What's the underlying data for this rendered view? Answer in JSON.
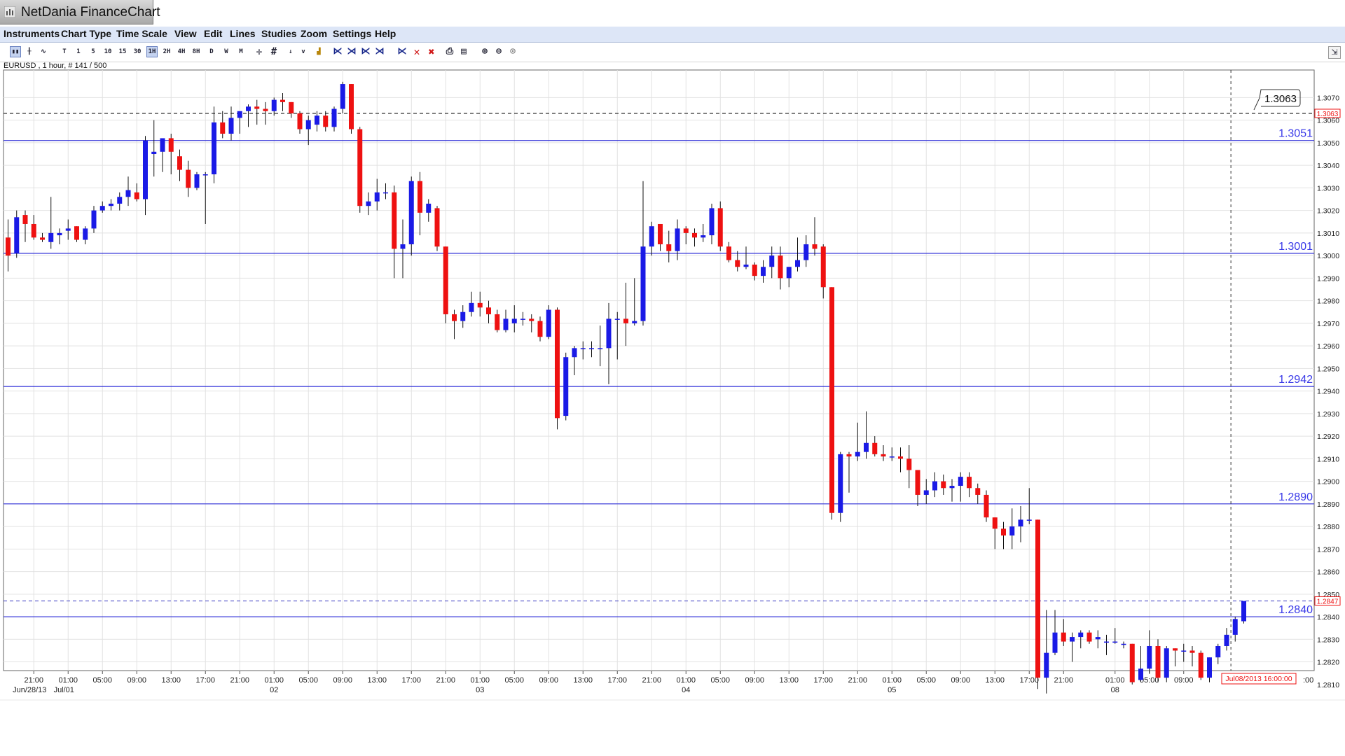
{
  "app": {
    "title": "NetDania FinanceChart"
  },
  "menu": [
    "Instruments",
    "Chart Type",
    "Time Scale",
    "View",
    "Edit",
    "Lines",
    "Studies",
    "Zoom",
    "Settings",
    "Help"
  ],
  "toolbar": {
    "timeframes": [
      "T",
      "1",
      "5",
      "10",
      "15",
      "30",
      "1H",
      "2H",
      "4H",
      "8H",
      "D",
      "W",
      "M"
    ],
    "active_timeframe": "1H"
  },
  "instrument_label": "EURUSD , 1 hour, # 141 / 500",
  "current_price_label": "1.2847",
  "high_marker_label": "1.3063",
  "cursor_date_label": "Jul08/2013 16:00:00",
  "colors": {
    "up": "#1a1ae6",
    "down": "#ee1111",
    "level_line": "#3030d8",
    "level_text": "#3a3ae8",
    "dashed": "#333333",
    "current_price": "#ee1111",
    "grid": "#e2e2e2"
  },
  "chart_data": {
    "type": "candlestick",
    "symbol": "EURUSD",
    "interval": "1 hour",
    "ylim": [
      1.2805,
      1.3075
    ],
    "y_ticks": [
      "1.2810",
      "1.2820",
      "1.2830",
      "1.2840",
      "1.2850",
      "1.2860",
      "1.2870",
      "1.2880",
      "1.2890",
      "1.2900",
      "1.2910",
      "1.2920",
      "1.2930",
      "1.2940",
      "1.2950",
      "1.2960",
      "1.2970",
      "1.2980",
      "1.2990",
      "1.3000",
      "1.3010",
      "1.3020",
      "1.3030",
      "1.3040",
      "1.3050",
      "1.3060",
      "1.3070"
    ],
    "x_ticks": [
      {
        "bar": 3,
        "label": "21:00",
        "date": "Jun/28/13"
      },
      {
        "bar": 7,
        "label": "01:00",
        "date": "Jul/01"
      },
      {
        "bar": 11,
        "label": "05:00",
        "date": ""
      },
      {
        "bar": 15,
        "label": "09:00",
        "date": ""
      },
      {
        "bar": 19,
        "label": "13:00",
        "date": ""
      },
      {
        "bar": 23,
        "label": "17:00",
        "date": ""
      },
      {
        "bar": 27,
        "label": "21:00",
        "date": ""
      },
      {
        "bar": 31,
        "label": "01:00",
        "date": "02"
      },
      {
        "bar": 35,
        "label": "05:00",
        "date": ""
      },
      {
        "bar": 39,
        "label": "09:00",
        "date": ""
      },
      {
        "bar": 43,
        "label": "13:00",
        "date": ""
      },
      {
        "bar": 47,
        "label": "17:00",
        "date": ""
      },
      {
        "bar": 51,
        "label": "21:00",
        "date": ""
      },
      {
        "bar": 55,
        "label": "01:00",
        "date": "03"
      },
      {
        "bar": 59,
        "label": "05:00",
        "date": ""
      },
      {
        "bar": 63,
        "label": "09:00",
        "date": ""
      },
      {
        "bar": 67,
        "label": "13:00",
        "date": ""
      },
      {
        "bar": 71,
        "label": "17:00",
        "date": ""
      },
      {
        "bar": 75,
        "label": "21:00",
        "date": ""
      },
      {
        "bar": 79,
        "label": "01:00",
        "date": "04"
      },
      {
        "bar": 83,
        "label": "05:00",
        "date": ""
      },
      {
        "bar": 87,
        "label": "09:00",
        "date": ""
      },
      {
        "bar": 91,
        "label": "13:00",
        "date": ""
      },
      {
        "bar": 95,
        "label": "17:00",
        "date": ""
      },
      {
        "bar": 99,
        "label": "21:00",
        "date": ""
      },
      {
        "bar": 103,
        "label": "01:00",
        "date": "05"
      },
      {
        "bar": 107,
        "label": "05:00",
        "date": ""
      },
      {
        "bar": 111,
        "label": "09:00",
        "date": ""
      },
      {
        "bar": 115,
        "label": "13:00",
        "date": ""
      },
      {
        "bar": 119,
        "label": "17:00",
        "date": ""
      },
      {
        "bar": 123,
        "label": "21:00",
        "date": ""
      },
      {
        "bar": 129,
        "label": "01:00",
        "date": "08"
      },
      {
        "bar": 133,
        "label": "05:00",
        "date": ""
      },
      {
        "bar": 137,
        "label": "09:00",
        "date": ""
      }
    ],
    "levels": [
      {
        "value": 1.3051,
        "label": "1.3051"
      },
      {
        "value": 1.3001,
        "label": "1.3001"
      },
      {
        "value": 1.2942,
        "label": "1.2942"
      },
      {
        "value": 1.289,
        "label": "1.2890"
      },
      {
        "value": 1.284,
        "label": "1.2840"
      }
    ],
    "dashed_high": 1.3063,
    "current_price": 1.2847,
    "cursor_bar": 142.5,
    "last_axis_tick": ":00",
    "candles": [
      [
        1.3008,
        1.3016,
        1.2993,
        1.3
      ],
      [
        1.3001,
        1.302,
        1.2999,
        1.3017
      ],
      [
        1.3018,
        1.302,
        1.3006,
        1.3014
      ],
      [
        1.3014,
        1.3018,
        1.3007,
        1.3008
      ],
      [
        1.3008,
        1.301,
        1.3006,
        1.3007
      ],
      [
        1.3006,
        1.3026,
        1.3003,
        1.301
      ],
      [
        1.3009,
        1.3012,
        1.3005,
        1.301
      ],
      [
        1.3011,
        1.3016,
        1.3007,
        1.3012
      ],
      [
        1.3013,
        1.3013,
        1.3006,
        1.3007
      ],
      [
        1.3007,
        1.3013,
        1.3005,
        1.3012
      ],
      [
        1.3012,
        1.3022,
        1.301,
        1.302
      ],
      [
        1.302,
        1.3024,
        1.3019,
        1.3022
      ],
      [
        1.3022,
        1.3025,
        1.302,
        1.3023
      ],
      [
        1.3023,
        1.3028,
        1.302,
        1.3026
      ],
      [
        1.3026,
        1.3035,
        1.3022,
        1.3029
      ],
      [
        1.3028,
        1.3032,
        1.3024,
        1.3025
      ],
      [
        1.3025,
        1.3053,
        1.3018,
        1.3051
      ],
      [
        1.3045,
        1.306,
        1.3035,
        1.3046
      ],
      [
        1.3046,
        1.305,
        1.3037,
        1.3052
      ],
      [
        1.3052,
        1.3054,
        1.3036,
        1.3046
      ],
      [
        1.3044,
        1.3047,
        1.3033,
        1.3038
      ],
      [
        1.3038,
        1.3042,
        1.3026,
        1.303
      ],
      [
        1.303,
        1.3037,
        1.3029,
        1.3036
      ],
      [
        1.3036,
        1.3037,
        1.3014,
        1.3036
      ],
      [
        1.3036,
        1.3066,
        1.3032,
        1.3059
      ],
      [
        1.3059,
        1.3064,
        1.3052,
        1.3054
      ],
      [
        1.3054,
        1.3066,
        1.3051,
        1.3061
      ],
      [
        1.3061,
        1.3063,
        1.3054,
        1.3064
      ],
      [
        1.3064,
        1.3067,
        1.3057,
        1.3066
      ],
      [
        1.3066,
        1.3069,
        1.3058,
        1.3065
      ],
      [
        1.3065,
        1.3068,
        1.3058,
        1.3064
      ],
      [
        1.3064,
        1.307,
        1.3062,
        1.3069
      ],
      [
        1.3069,
        1.3072,
        1.3064,
        1.3068
      ],
      [
        1.3068,
        1.3068,
        1.3061,
        1.3063
      ],
      [
        1.3063,
        1.3064,
        1.3054,
        1.3056
      ],
      [
        1.3056,
        1.3062,
        1.3049,
        1.306
      ],
      [
        1.3058,
        1.3064,
        1.3055,
        1.3062
      ],
      [
        1.3062,
        1.3064,
        1.3055,
        1.3057
      ],
      [
        1.3057,
        1.3066,
        1.3055,
        1.3065
      ],
      [
        1.3065,
        1.3077,
        1.3063,
        1.3076
      ],
      [
        1.3076,
        1.3076,
        1.3054,
        1.3056
      ],
      [
        1.3056,
        1.3057,
        1.3019,
        1.3022
      ],
      [
        1.3022,
        1.3028,
        1.3018,
        1.3024
      ],
      [
        1.3024,
        1.3034,
        1.302,
        1.3028
      ],
      [
        1.3028,
        1.3032,
        1.3025,
        1.3028
      ],
      [
        1.3028,
        1.3031,
        1.299,
        1.3003
      ],
      [
        1.3003,
        1.3016,
        1.299,
        1.3005
      ],
      [
        1.3005,
        1.3035,
        1.3,
        1.3033
      ],
      [
        1.3033,
        1.3037,
        1.3009,
        1.3019
      ],
      [
        1.3019,
        1.3025,
        1.3015,
        1.3023
      ],
      [
        1.3021,
        1.3022,
        1.3002,
        1.3004
      ],
      [
        1.3004,
        1.3004,
        1.297,
        1.2974
      ],
      [
        1.2974,
        1.2976,
        1.2963,
        1.2971
      ],
      [
        1.2971,
        1.2978,
        1.2968,
        1.2975
      ],
      [
        1.2975,
        1.2984,
        1.2973,
        1.2979
      ],
      [
        1.2979,
        1.2984,
        1.2973,
        1.2977
      ],
      [
        1.2977,
        1.298,
        1.297,
        1.2974
      ],
      [
        1.2974,
        1.2976,
        1.2966,
        1.2967
      ],
      [
        1.2967,
        1.2976,
        1.2966,
        1.2972
      ],
      [
        1.297,
        1.2978,
        1.2966,
        1.2972
      ],
      [
        1.2972,
        1.2975,
        1.2969,
        1.2972
      ],
      [
        1.2972,
        1.2974,
        1.2966,
        1.2971
      ],
      [
        1.2971,
        1.2973,
        1.2962,
        1.2964
      ],
      [
        1.2964,
        1.2978,
        1.2963,
        1.2976
      ],
      [
        1.2976,
        1.2977,
        1.2923,
        1.2928
      ],
      [
        1.2929,
        1.2957,
        1.2927,
        1.2955
      ],
      [
        1.2955,
        1.296,
        1.2947,
        1.2959
      ],
      [
        1.2959,
        1.2962,
        1.2954,
        1.2959
      ],
      [
        1.2959,
        1.2962,
        1.2955,
        1.2959
      ],
      [
        1.2959,
        1.2969,
        1.2951,
        1.2959
      ],
      [
        1.2959,
        1.2979,
        1.2943,
        1.2972
      ],
      [
        1.2972,
        1.2975,
        1.2954,
        1.2972
      ],
      [
        1.2972,
        1.2988,
        1.296,
        1.297
      ],
      [
        1.297,
        1.299,
        1.2969,
        1.2971
      ],
      [
        1.2971,
        1.3033,
        1.2969,
        1.3004
      ],
      [
        1.3004,
        1.3015,
        1.3,
        1.3013
      ],
      [
        1.3014,
        1.3014,
        1.3002,
        1.3005
      ],
      [
        1.3005,
        1.3011,
        1.2997,
        1.3002
      ],
      [
        1.3002,
        1.3016,
        1.2998,
        1.3012
      ],
      [
        1.3012,
        1.3013,
        1.3005,
        1.301
      ],
      [
        1.301,
        1.3012,
        1.3004,
        1.3008
      ],
      [
        1.3008,
        1.3014,
        1.3006,
        1.3009
      ],
      [
        1.3009,
        1.3023,
        1.3005,
        1.3021
      ],
      [
        1.3021,
        1.3024,
        1.3002,
        1.3004
      ],
      [
        1.3004,
        1.3006,
        1.2997,
        1.2998
      ],
      [
        1.2998,
        1.3002,
        1.2993,
        1.2995
      ],
      [
        1.2995,
        1.3004,
        1.2994,
        1.2996
      ],
      [
        1.2996,
        1.2997,
        1.2989,
        1.2991
      ],
      [
        1.2991,
        1.2998,
        1.2988,
        1.2995
      ],
      [
        1.2995,
        1.3004,
        1.299,
        1.3
      ],
      [
        1.3,
        1.3004,
        1.2985,
        1.299
      ],
      [
        1.299,
        1.2995,
        1.2986,
        1.2995
      ],
      [
        1.2995,
        1.3008,
        1.2993,
        1.2998
      ],
      [
        1.2998,
        1.3009,
        1.2995,
        1.3005
      ],
      [
        1.3005,
        1.3017,
        1.3,
        1.3003
      ],
      [
        1.3004,
        1.3005,
        1.2981,
        1.2986
      ],
      [
        1.2986,
        1.2986,
        1.2883,
        1.2886
      ],
      [
        1.2886,
        1.2913,
        1.2882,
        1.2912
      ],
      [
        1.2912,
        1.2913,
        1.2895,
        1.2911
      ],
      [
        1.2911,
        1.2926,
        1.2909,
        1.2913
      ],
      [
        1.2913,
        1.2931,
        1.291,
        1.2917
      ],
      [
        1.2917,
        1.292,
        1.2911,
        1.2912
      ],
      [
        1.2912,
        1.2916,
        1.2909,
        1.2911
      ],
      [
        1.2911,
        1.2915,
        1.2909,
        1.2911
      ],
      [
        1.2911,
        1.2915,
        1.2904,
        1.291
      ],
      [
        1.291,
        1.2916,
        1.2897,
        1.2905
      ],
      [
        1.2905,
        1.2905,
        1.2889,
        1.2894
      ],
      [
        1.2894,
        1.2901,
        1.289,
        1.2896
      ],
      [
        1.2896,
        1.2904,
        1.2893,
        1.29
      ],
      [
        1.29,
        1.2903,
        1.2894,
        1.2897
      ],
      [
        1.2897,
        1.2901,
        1.2891,
        1.2898
      ],
      [
        1.2898,
        1.2904,
        1.2891,
        1.2902
      ],
      [
        1.2902,
        1.2904,
        1.2893,
        1.2897
      ],
      [
        1.2897,
        1.2899,
        1.289,
        1.2894
      ],
      [
        1.2894,
        1.2896,
        1.2882,
        1.2884
      ],
      [
        1.2884,
        1.2884,
        1.287,
        1.2879
      ],
      [
        1.2879,
        1.2882,
        1.287,
        1.2876
      ],
      [
        1.2876,
        1.2888,
        1.287,
        1.288
      ],
      [
        1.288,
        1.2889,
        1.2873,
        1.2883
      ],
      [
        1.2883,
        1.2897,
        1.2881,
        1.2883
      ],
      [
        1.2883,
        1.2883,
        1.2808,
        1.2813
      ],
      [
        1.2813,
        1.2843,
        1.2806,
        1.2824
      ],
      [
        1.2824,
        1.2843,
        1.2823,
        1.2833
      ],
      [
        1.2833,
        1.2839,
        1.2827,
        1.2829
      ],
      [
        1.2829,
        1.2833,
        1.282,
        1.2831
      ],
      [
        1.2831,
        1.2834,
        1.2826,
        1.2833
      ],
      [
        1.2833,
        1.2834,
        1.2828,
        1.2829
      ],
      [
        1.283,
        1.2834,
        1.2826,
        1.2831
      ],
      [
        1.2829,
        1.2832,
        1.2823,
        1.2829
      ],
      [
        1.2829,
        1.2835,
        1.2828,
        1.2829
      ],
      [
        1.2828,
        1.2829,
        1.2826,
        1.2828
      ],
      [
        1.2828,
        1.2828,
        1.281,
        1.2811
      ],
      [
        1.2812,
        1.2827,
        1.2811,
        1.2817
      ],
      [
        1.2817,
        1.2834,
        1.2815,
        1.2827
      ],
      [
        1.2827,
        1.283,
        1.2811,
        1.2813
      ],
      [
        1.2813,
        1.2827,
        1.2811,
        1.2826
      ],
      [
        1.2826,
        1.2826,
        1.2818,
        1.2825
      ],
      [
        1.2825,
        1.2828,
        1.282,
        1.2825
      ],
      [
        1.2825,
        1.2827,
        1.2818,
        1.2824
      ],
      [
        1.2824,
        1.2825,
        1.2812,
        1.2813
      ],
      [
        1.2813,
        1.2822,
        1.2811,
        1.2822
      ],
      [
        1.2822,
        1.2828,
        1.2819,
        1.2827
      ],
      [
        1.2827,
        1.2835,
        1.2825,
        1.2832
      ],
      [
        1.2832,
        1.284,
        1.2829,
        1.2839
      ],
      [
        1.2838,
        1.2847,
        1.2837,
        1.2847
      ]
    ]
  }
}
